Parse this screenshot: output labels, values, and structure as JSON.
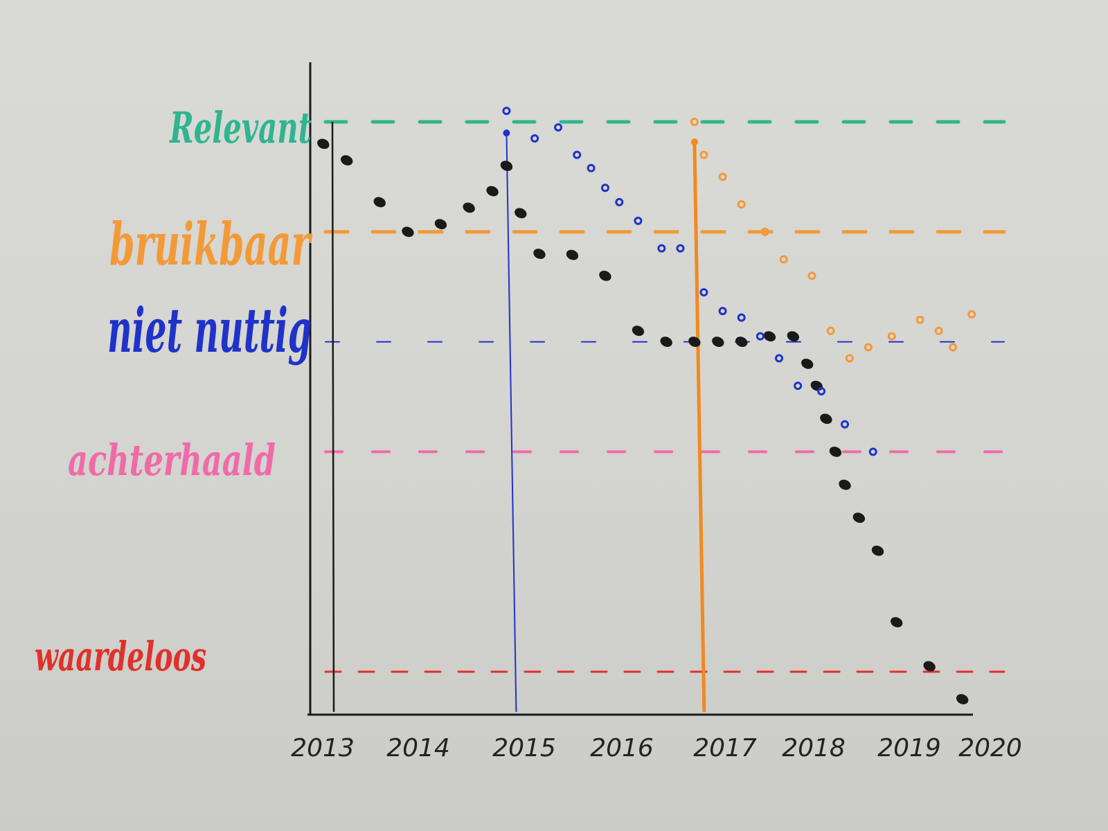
{
  "chart_data": {
    "type": "scatter",
    "title": "",
    "xlabel": "",
    "ylabel": "",
    "xlim": [
      2013,
      2020
    ],
    "x_ticks": [
      "2013",
      "2014",
      "2015",
      "2016",
      "2017",
      "2018",
      "2019",
      "2020"
    ],
    "levels": [
      {
        "name": "Relevant",
        "value": 5,
        "color": "#2fb58f"
      },
      {
        "name": "bruikbaar",
        "value": 4,
        "color": "#f29a38"
      },
      {
        "name": "niet nuttig",
        "value": 3,
        "color": "#1f33c9"
      },
      {
        "name": "achterhaald",
        "value": 2,
        "color": "#f06aa8"
      },
      {
        "name": "waardeloos",
        "value": 0,
        "color": "#e0312a"
      }
    ],
    "grid": false,
    "legend": "none",
    "series": [
      {
        "color": "#1a1a1a",
        "x": [
          2013.05,
          2013.3,
          2013.65,
          2013.95,
          2014.3,
          2014.6,
          2014.85,
          2015.0,
          2015.15,
          2015.35,
          2015.7,
          2016.05,
          2016.4,
          2016.7,
          2017.0,
          2017.25,
          2017.5,
          2017.8,
          2018.05,
          2018.2,
          2018.3,
          2018.4,
          2018.5,
          2018.6,
          2018.75,
          2018.95,
          2019.15,
          2019.5,
          2019.85
        ],
        "y": [
          4.8,
          4.65,
          4.27,
          4.0,
          4.07,
          4.22,
          4.37,
          4.6,
          4.17,
          3.8,
          3.79,
          3.6,
          3.1,
          3.0,
          3.0,
          3.0,
          3.0,
          3.05,
          3.05,
          2.8,
          2.6,
          2.3,
          2.0,
          1.7,
          1.4,
          1.1,
          0.45,
          0.05,
          -0.25
        ]
      },
      {
        "color": "#1f33c9",
        "x": [
          2015.0,
          2015.3,
          2015.55,
          2015.75,
          2015.9,
          2016.05,
          2016.2,
          2016.4,
          2016.65,
          2016.85,
          2017.1,
          2017.3,
          2017.5,
          2017.7,
          2017.9,
          2018.1,
          2018.35,
          2018.6,
          2018.9
        ],
        "y": [
          5.1,
          4.85,
          4.95,
          4.7,
          4.58,
          4.4,
          4.27,
          4.1,
          3.85,
          3.85,
          3.45,
          3.28,
          3.22,
          3.05,
          2.85,
          2.6,
          2.55,
          2.25,
          2.0
        ]
      },
      {
        "color": "#f29a38",
        "x": [
          2017.0,
          2017.1,
          2017.3,
          2017.5,
          2017.75,
          2017.95,
          2018.25,
          2018.45,
          2018.65,
          2018.85,
          2019.1,
          2019.4,
          2019.6,
          2019.75,
          2019.95
        ],
        "y": [
          5.0,
          4.7,
          4.5,
          4.25,
          4.0,
          3.75,
          3.6,
          3.1,
          2.85,
          2.95,
          3.05,
          3.2,
          3.1,
          2.95,
          3.25
        ]
      }
    ],
    "vertical_lines": [
      {
        "x": 2013.0,
        "color": "#1a1a1a"
      },
      {
        "x": 2015.0,
        "color": "#1f33c9"
      },
      {
        "x": 2017.0,
        "color": "#f08a1e"
      }
    ]
  }
}
